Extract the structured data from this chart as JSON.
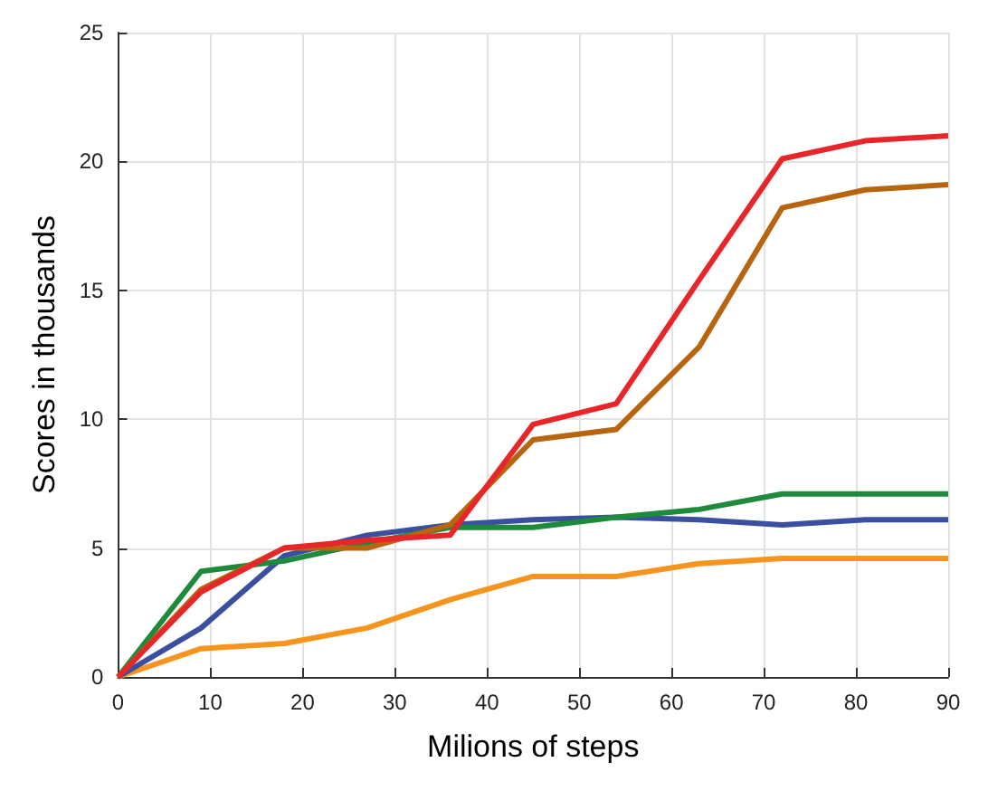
{
  "chart_data": {
    "type": "line",
    "xlabel": "Milions of steps",
    "ylabel": "Scores in thousands",
    "x": [
      0,
      9,
      18,
      27,
      36,
      45,
      54,
      63,
      72,
      81,
      90
    ],
    "series": [
      {
        "color": "#f7941d",
        "values": [
          0,
          1.1,
          1.3,
          1.9,
          3.0,
          3.9,
          3.9,
          4.4,
          4.6,
          4.6,
          4.6
        ]
      },
      {
        "color": "#3a4fa0",
        "values": [
          0,
          1.9,
          4.7,
          5.5,
          5.9,
          6.1,
          6.2,
          6.1,
          5.9,
          6.1,
          6.1
        ]
      },
      {
        "color": "#1e8a3c",
        "values": [
          0,
          4.1,
          4.5,
          5.2,
          5.8,
          5.8,
          6.2,
          6.5,
          7.1,
          7.1,
          7.1
        ]
      },
      {
        "color": "#b8650f",
        "values": [
          0,
          3.4,
          5.0,
          5.0,
          5.9,
          9.2,
          9.6,
          12.8,
          18.2,
          18.9,
          19.1
        ]
      },
      {
        "color": "#e8262a",
        "values": [
          0,
          3.3,
          5.0,
          5.3,
          5.5,
          9.8,
          10.6,
          15.4,
          20.1,
          20.8,
          21.0
        ]
      }
    ],
    "xlim": [
      0,
      90
    ],
    "xticks": [
      0,
      10,
      20,
      30,
      40,
      50,
      60,
      70,
      80,
      90
    ],
    "ylim": [
      0,
      25
    ],
    "yticks": [
      0,
      5,
      10,
      15,
      20,
      25
    ],
    "grid": true,
    "marker": "none",
    "line_style": "solid"
  }
}
